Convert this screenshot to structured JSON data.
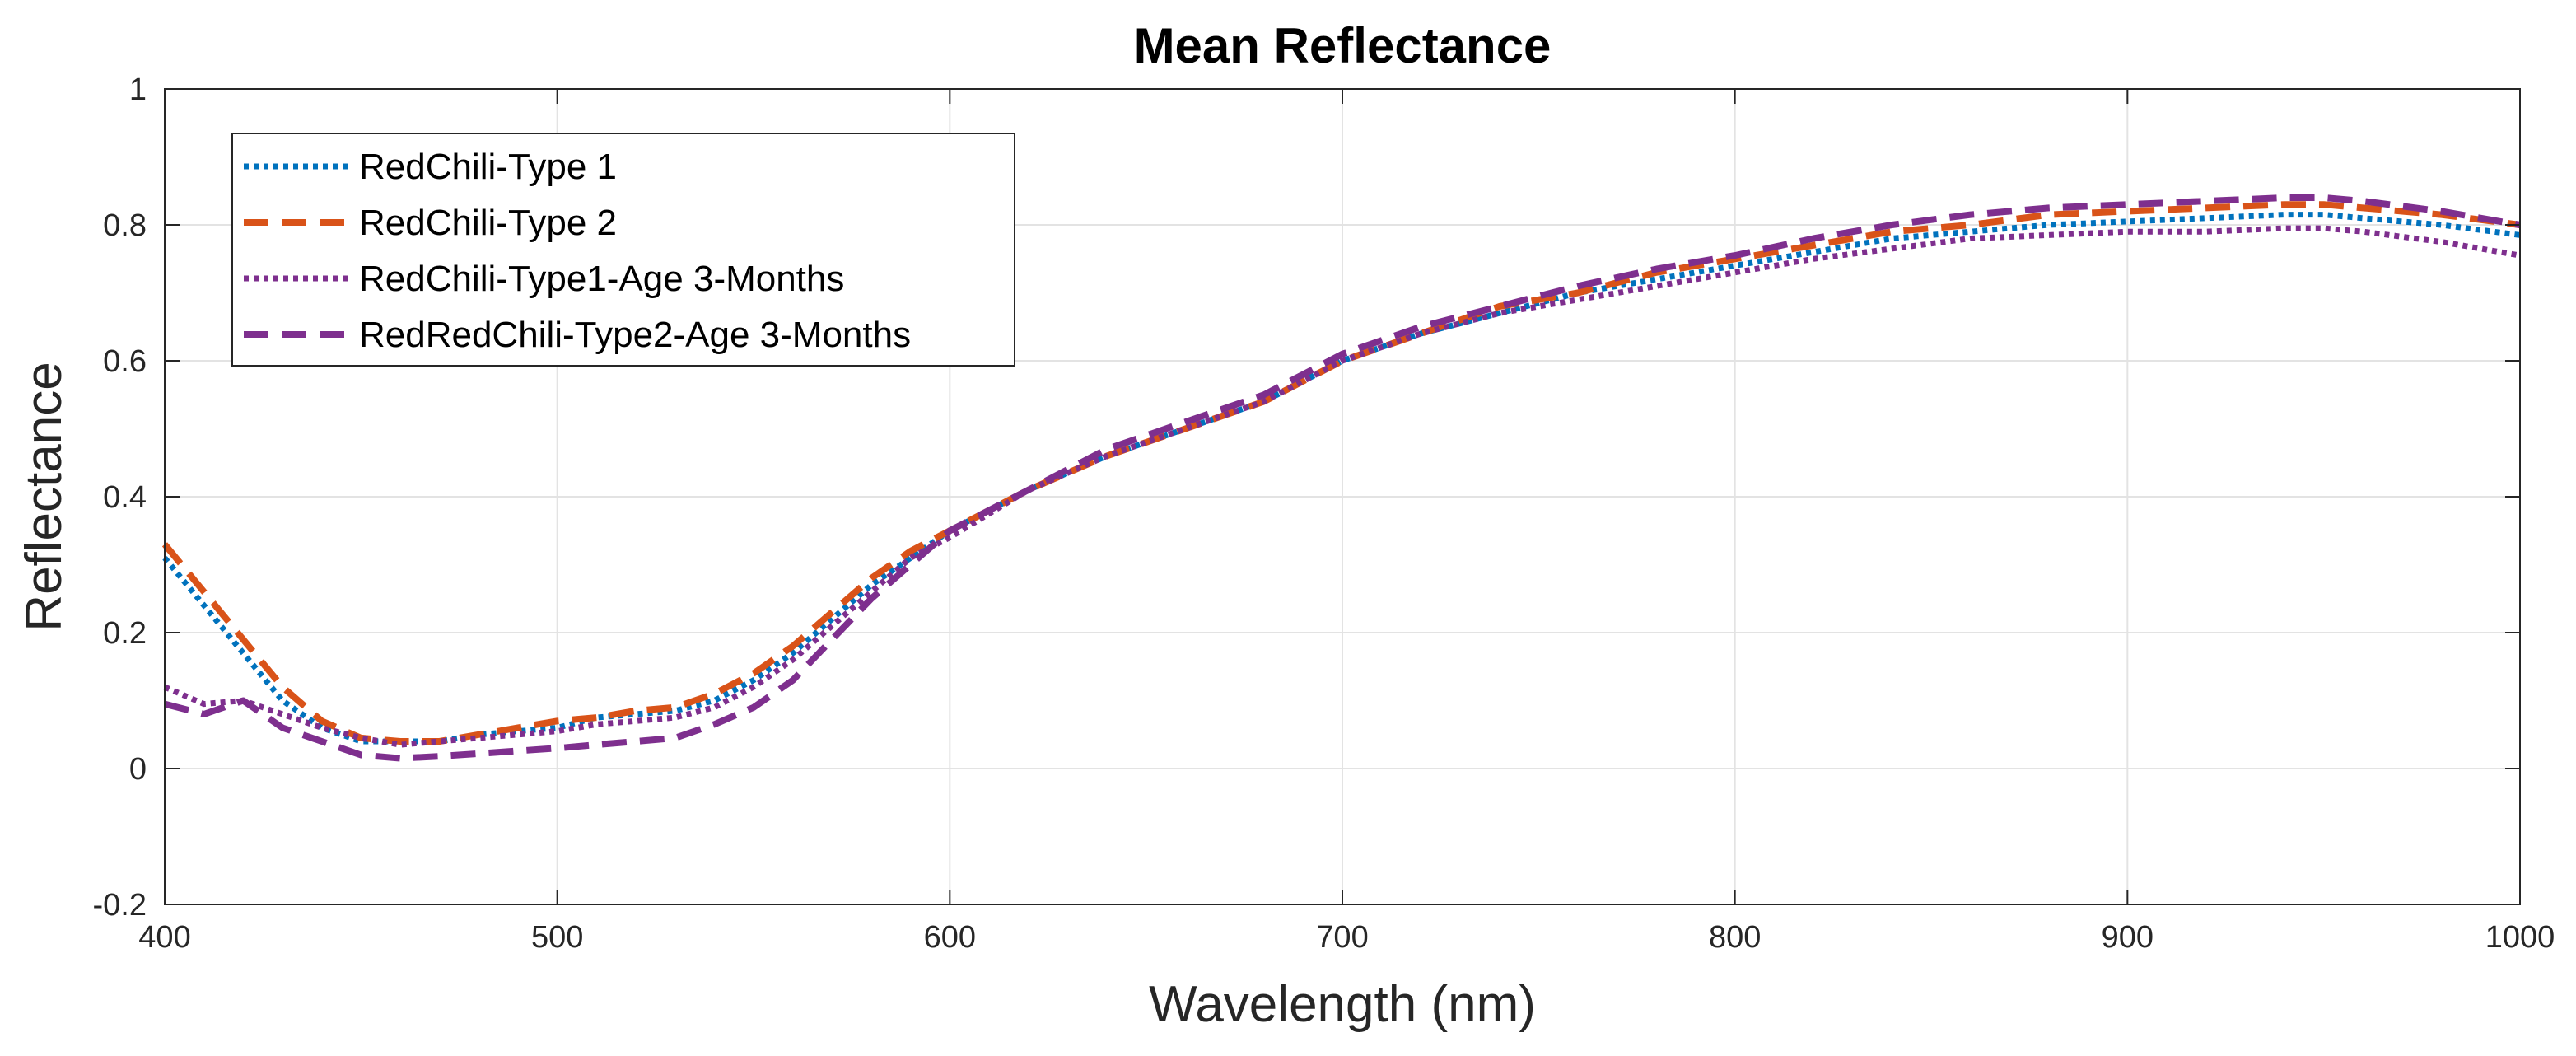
{
  "chart_data": {
    "type": "line",
    "title": "Mean Reflectance",
    "xlabel": "Wavelength (nm)",
    "ylabel": "Reflectance",
    "xlim": [
      400,
      1000
    ],
    "ylim": [
      -0.2,
      1
    ],
    "grid": true,
    "legend_position": "top-left",
    "x_ticks": [
      400,
      500,
      600,
      700,
      800,
      900,
      1000
    ],
    "x_tick_labels": [
      "400",
      "500",
      "600",
      "700",
      "800",
      "900",
      "1000"
    ],
    "y_ticks": [
      -0.2,
      0,
      0.2,
      0.4,
      0.6,
      0.8,
      1
    ],
    "y_tick_labels": [
      "-0.2",
      "0",
      "0.2",
      "0.4",
      "0.6",
      "0.8",
      "1"
    ],
    "x": [
      400,
      410,
      420,
      430,
      440,
      450,
      460,
      470,
      480,
      490,
      500,
      510,
      520,
      530,
      540,
      550,
      560,
      570,
      580,
      590,
      600,
      620,
      640,
      660,
      680,
      700,
      720,
      740,
      760,
      780,
      800,
      820,
      840,
      860,
      880,
      900,
      920,
      940,
      950,
      960,
      980,
      1000
    ],
    "series": [
      {
        "name": "RedChili-Type 1",
        "color": "#0072BD",
        "style": "dotted",
        "values": [
          0.31,
          0.24,
          0.17,
          0.1,
          0.06,
          0.04,
          0.04,
          0.04,
          0.05,
          0.055,
          0.06,
          0.075,
          0.08,
          0.085,
          0.1,
          0.13,
          0.17,
          0.22,
          0.27,
          0.31,
          0.35,
          0.41,
          0.46,
          0.5,
          0.54,
          0.6,
          0.64,
          0.67,
          0.7,
          0.72,
          0.74,
          0.76,
          0.78,
          0.79,
          0.8,
          0.805,
          0.81,
          0.815,
          0.815,
          0.81,
          0.8,
          0.785
        ]
      },
      {
        "name": "RedChili-Type 2",
        "color": "#D95319",
        "style": "dashed",
        "values": [
          0.33,
          0.26,
          0.19,
          0.12,
          0.07,
          0.045,
          0.04,
          0.04,
          0.05,
          0.06,
          0.07,
          0.075,
          0.085,
          0.09,
          0.11,
          0.14,
          0.18,
          0.23,
          0.28,
          0.32,
          0.35,
          0.41,
          0.46,
          0.5,
          0.54,
          0.6,
          0.64,
          0.68,
          0.7,
          0.73,
          0.75,
          0.77,
          0.79,
          0.8,
          0.815,
          0.82,
          0.825,
          0.83,
          0.83,
          0.825,
          0.815,
          0.8
        ]
      },
      {
        "name": "RedChili-Type1-Age 3-Months",
        "color": "#7E2F8E",
        "style": "dotted",
        "values": [
          0.12,
          0.095,
          0.1,
          0.08,
          0.06,
          0.045,
          0.035,
          0.04,
          0.045,
          0.05,
          0.055,
          0.065,
          0.07,
          0.075,
          0.09,
          0.12,
          0.16,
          0.21,
          0.26,
          0.31,
          0.34,
          0.41,
          0.46,
          0.5,
          0.54,
          0.6,
          0.64,
          0.67,
          0.69,
          0.71,
          0.73,
          0.75,
          0.765,
          0.78,
          0.785,
          0.79,
          0.79,
          0.795,
          0.795,
          0.79,
          0.775,
          0.755
        ]
      },
      {
        "name": "RedRedChili-Type2-Age 3-Months",
        "color": "#7E2F8E",
        "style": "dashed",
        "values": [
          0.095,
          0.08,
          0.1,
          0.06,
          0.04,
          0.02,
          0.015,
          0.018,
          0.022,
          0.026,
          0.03,
          0.035,
          0.04,
          0.045,
          0.065,
          0.09,
          0.13,
          0.19,
          0.25,
          0.3,
          0.35,
          0.41,
          0.47,
          0.51,
          0.55,
          0.61,
          0.65,
          0.68,
          0.71,
          0.735,
          0.755,
          0.78,
          0.8,
          0.815,
          0.825,
          0.83,
          0.835,
          0.84,
          0.84,
          0.835,
          0.82,
          0.8
        ]
      }
    ]
  }
}
